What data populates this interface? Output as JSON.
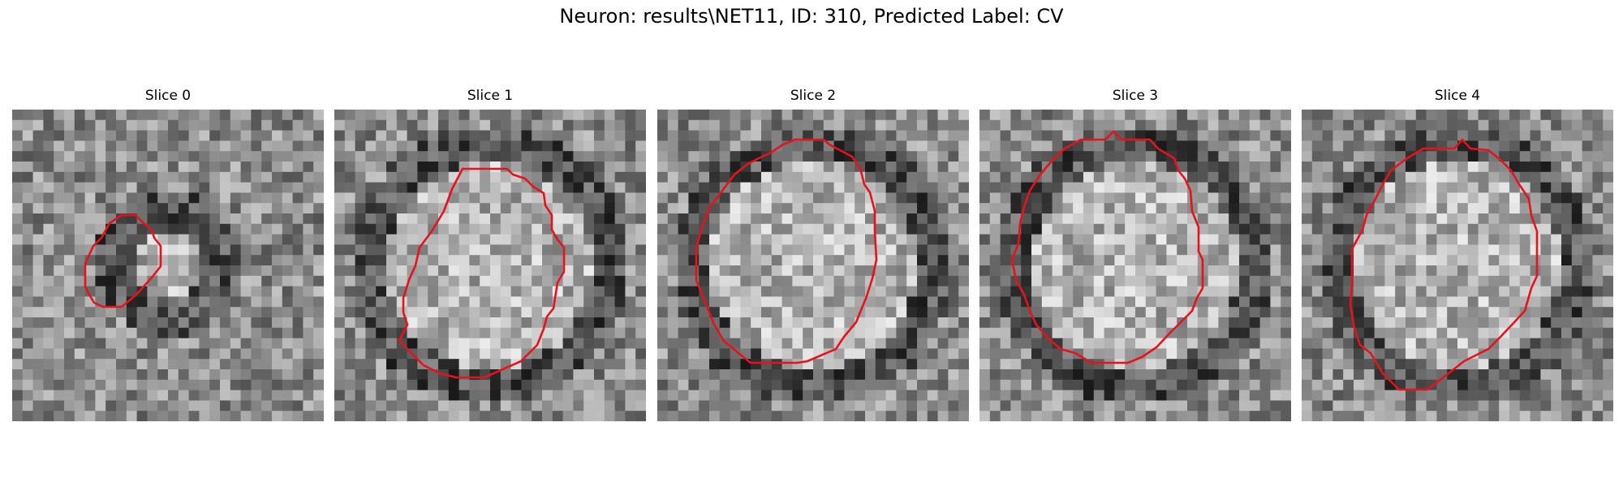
{
  "figure": {
    "title": "Neuron: results\\NET11, ID: 310, Predicted Label: CV"
  },
  "colors": {
    "contour": "#e8121b",
    "background": "#ffffff"
  },
  "panels": [
    {
      "title": "Slice 0",
      "seed": 11,
      "contour_name": "roi-contour-small"
    },
    {
      "title": "Slice 1",
      "seed": 23,
      "contour_name": "roi-contour"
    },
    {
      "title": "Slice 2",
      "seed": 37,
      "contour_name": "roi-contour"
    },
    {
      "title": "Slice 3",
      "seed": 41,
      "contour_name": "roi-contour"
    },
    {
      "title": "Slice 4",
      "seed": 53,
      "contour_name": "roi-contour"
    }
  ]
}
